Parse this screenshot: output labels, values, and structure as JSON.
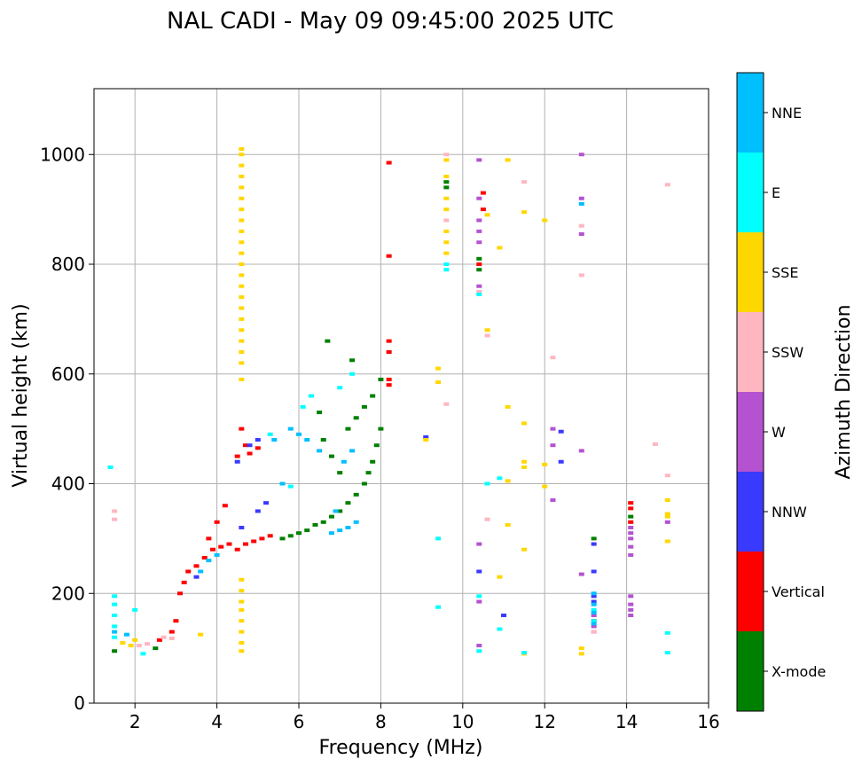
{
  "chart_data": {
    "type": "scatter",
    "title": "NAL CADI - May 09 09:45:00 2025 UTC",
    "xlabel": "Frequency (MHz)",
    "ylabel": "Virtual height (km)",
    "xlim": [
      1,
      16
    ],
    "ylim": [
      0,
      1120
    ],
    "xticks": [
      2,
      4,
      6,
      8,
      10,
      12,
      14,
      16
    ],
    "yticks": [
      0,
      200,
      400,
      600,
      800,
      1000
    ],
    "grid": true,
    "colorbar": {
      "title": "Azimuth Direction",
      "categories": [
        {
          "name": "X-mode",
          "color": "#008000"
        },
        {
          "name": "Vertical",
          "color": "#ff0000"
        },
        {
          "name": "NNW",
          "color": "#3a3aff"
        },
        {
          "name": "W",
          "color": "#b452d2"
        },
        {
          "name": "SSW",
          "color": "#ffb6c1"
        },
        {
          "name": "SSE",
          "color": "#ffd700"
        },
        {
          "name": "E",
          "color": "#00ffff"
        },
        {
          "name": "NNE",
          "color": "#00bfff"
        }
      ]
    },
    "series": [
      {
        "name": "X-mode",
        "points": [
          [
            1.5,
            95
          ],
          [
            2.5,
            100
          ],
          [
            5.6,
            300
          ],
          [
            5.8,
            305
          ],
          [
            6.0,
            310
          ],
          [
            6.2,
            315
          ],
          [
            6.4,
            325
          ],
          [
            6.6,
            330
          ],
          [
            6.8,
            340
          ],
          [
            7.0,
            350
          ],
          [
            7.2,
            365
          ],
          [
            7.4,
            380
          ],
          [
            7.6,
            400
          ],
          [
            7.7,
            420
          ],
          [
            7.8,
            440
          ],
          [
            7.9,
            470
          ],
          [
            8.0,
            500
          ],
          [
            7.0,
            420
          ],
          [
            6.8,
            450
          ],
          [
            6.6,
            480
          ],
          [
            7.2,
            500
          ],
          [
            7.4,
            520
          ],
          [
            7.6,
            540
          ],
          [
            7.8,
            560
          ],
          [
            8.0,
            590
          ],
          [
            6.5,
            530
          ],
          [
            6.7,
            660
          ],
          [
            7.3,
            625
          ],
          [
            10.4,
            810
          ],
          [
            13.2,
            300
          ],
          [
            14.1,
            340
          ],
          [
            9.6,
            950
          ],
          [
            9.6,
            940
          ],
          [
            10.4,
            790
          ]
        ]
      },
      {
        "name": "Vertical",
        "points": [
          [
            2.6,
            115
          ],
          [
            2.9,
            130
          ],
          [
            3.0,
            150
          ],
          [
            3.1,
            200
          ],
          [
            3.2,
            220
          ],
          [
            3.3,
            240
          ],
          [
            3.5,
            250
          ],
          [
            3.7,
            265
          ],
          [
            3.9,
            280
          ],
          [
            4.1,
            285
          ],
          [
            4.3,
            290
          ],
          [
            4.5,
            280
          ],
          [
            4.7,
            290
          ],
          [
            4.9,
            295
          ],
          [
            5.1,
            300
          ],
          [
            5.3,
            305
          ],
          [
            3.8,
            300
          ],
          [
            4.0,
            330
          ],
          [
            4.2,
            360
          ],
          [
            4.5,
            450
          ],
          [
            4.7,
            470
          ],
          [
            4.8,
            455
          ],
          [
            5.0,
            465
          ],
          [
            4.6,
            500
          ],
          [
            8.2,
            985
          ],
          [
            8.2,
            815
          ],
          [
            8.2,
            660
          ],
          [
            8.2,
            640
          ],
          [
            8.2,
            590
          ],
          [
            8.2,
            580
          ],
          [
            10.5,
            930
          ],
          [
            10.5,
            900
          ],
          [
            10.4,
            800
          ],
          [
            13.2,
            150
          ],
          [
            14.1,
            365
          ],
          [
            14.1,
            355
          ],
          [
            14.1,
            330
          ]
        ]
      },
      {
        "name": "NNW",
        "points": [
          [
            4.8,
            470
          ],
          [
            5.0,
            480
          ],
          [
            4.5,
            440
          ],
          [
            3.5,
            230
          ],
          [
            4.6,
            320
          ],
          [
            5.0,
            350
          ],
          [
            5.2,
            365
          ],
          [
            12.4,
            495
          ],
          [
            12.4,
            440
          ],
          [
            13.2,
            290
          ],
          [
            13.2,
            240
          ],
          [
            13.2,
            195
          ],
          [
            13.2,
            185
          ],
          [
            11.0,
            160
          ],
          [
            10.4,
            240
          ],
          [
            9.1,
            485
          ]
        ]
      },
      {
        "name": "W",
        "points": [
          [
            12.9,
            1000
          ],
          [
            12.9,
            920
          ],
          [
            12.9,
            855
          ],
          [
            12.9,
            460
          ],
          [
            12.2,
            500
          ],
          [
            12.2,
            470
          ],
          [
            12.2,
            370
          ],
          [
            10.4,
            990
          ],
          [
            10.4,
            920
          ],
          [
            10.4,
            880
          ],
          [
            10.4,
            860
          ],
          [
            10.4,
            840
          ],
          [
            10.4,
            760
          ],
          [
            10.4,
            290
          ],
          [
            10.4,
            185
          ],
          [
            10.4,
            105
          ],
          [
            13.2,
            140
          ],
          [
            13.2,
            130
          ],
          [
            13.2,
            160
          ],
          [
            12.9,
            235
          ],
          [
            14.1,
            195
          ],
          [
            14.1,
            180
          ],
          [
            14.1,
            170
          ],
          [
            14.1,
            160
          ],
          [
            14.1,
            320
          ],
          [
            14.1,
            310
          ],
          [
            14.1,
            300
          ],
          [
            14.1,
            285
          ],
          [
            14.1,
            270
          ],
          [
            15.0,
            330
          ]
        ]
      },
      {
        "name": "SSW",
        "points": [
          [
            1.5,
            350
          ],
          [
            1.5,
            335
          ],
          [
            2.1,
            105
          ],
          [
            2.3,
            108
          ],
          [
            2.7,
            120
          ],
          [
            2.9,
            118
          ],
          [
            9.6,
            1000
          ],
          [
            9.6,
            880
          ],
          [
            9.6,
            545
          ],
          [
            10.4,
            750
          ],
          [
            10.6,
            335
          ],
          [
            10.6,
            670
          ],
          [
            11.5,
            950
          ],
          [
            15.0,
            945
          ],
          [
            15.0,
            415
          ],
          [
            14.7,
            472
          ],
          [
            12.9,
            870
          ],
          [
            12.9,
            780
          ],
          [
            13.2,
            130
          ],
          [
            12.2,
            630
          ]
        ]
      },
      {
        "name": "SSE",
        "points": [
          [
            4.6,
            1010
          ],
          [
            4.6,
            1000
          ],
          [
            4.6,
            980
          ],
          [
            4.6,
            960
          ],
          [
            4.6,
            940
          ],
          [
            4.6,
            920
          ],
          [
            4.6,
            900
          ],
          [
            4.6,
            880
          ],
          [
            4.6,
            860
          ],
          [
            4.6,
            840
          ],
          [
            4.6,
            820
          ],
          [
            4.6,
            800
          ],
          [
            4.6,
            780
          ],
          [
            4.6,
            760
          ],
          [
            4.6,
            740
          ],
          [
            4.6,
            720
          ],
          [
            4.6,
            700
          ],
          [
            4.6,
            680
          ],
          [
            4.6,
            660
          ],
          [
            4.6,
            640
          ],
          [
            4.6,
            620
          ],
          [
            4.6,
            590
          ],
          [
            4.6,
            225
          ],
          [
            4.6,
            205
          ],
          [
            4.6,
            185
          ],
          [
            4.6,
            170
          ],
          [
            4.6,
            150
          ],
          [
            4.6,
            130
          ],
          [
            4.6,
            110
          ],
          [
            4.6,
            95
          ],
          [
            1.7,
            110
          ],
          [
            1.9,
            105
          ],
          [
            2.0,
            115
          ],
          [
            3.6,
            125
          ],
          [
            9.6,
            990
          ],
          [
            9.6,
            960
          ],
          [
            9.6,
            920
          ],
          [
            9.6,
            900
          ],
          [
            9.6,
            860
          ],
          [
            9.6,
            840
          ],
          [
            9.6,
            820
          ],
          [
            9.4,
            610
          ],
          [
            9.4,
            585
          ],
          [
            9.1,
            480
          ],
          [
            10.6,
            890
          ],
          [
            10.6,
            680
          ],
          [
            10.9,
            830
          ],
          [
            11.1,
            990
          ],
          [
            11.5,
            895
          ],
          [
            11.1,
            540
          ],
          [
            11.5,
            510
          ],
          [
            11.5,
            440
          ],
          [
            11.5,
            430
          ],
          [
            11.1,
            405
          ],
          [
            11.1,
            325
          ],
          [
            10.9,
            230
          ],
          [
            11.5,
            90
          ],
          [
            12.0,
            880
          ],
          [
            12.0,
            435
          ],
          [
            12.0,
            395
          ],
          [
            12.9,
            100
          ],
          [
            12.9,
            90
          ],
          [
            15.0,
            370
          ],
          [
            15.0,
            345
          ],
          [
            15.0,
            340
          ],
          [
            15.0,
            295
          ],
          [
            11.5,
            280
          ]
        ]
      },
      {
        "name": "E",
        "points": [
          [
            1.4,
            430
          ],
          [
            1.5,
            195
          ],
          [
            1.5,
            180
          ],
          [
            1.5,
            160
          ],
          [
            1.5,
            140
          ],
          [
            1.5,
            120
          ],
          [
            2.0,
            170
          ],
          [
            2.2,
            90
          ],
          [
            5.3,
            490
          ],
          [
            5.8,
            395
          ],
          [
            6.1,
            540
          ],
          [
            6.3,
            560
          ],
          [
            7.0,
            575
          ],
          [
            7.3,
            600
          ],
          [
            9.6,
            800
          ],
          [
            9.6,
            790
          ],
          [
            9.4,
            300
          ],
          [
            9.4,
            175
          ],
          [
            10.4,
            745
          ],
          [
            10.4,
            195
          ],
          [
            10.6,
            400
          ],
          [
            10.9,
            410
          ],
          [
            10.9,
            135
          ],
          [
            11.5,
            92
          ],
          [
            15.0,
            92
          ],
          [
            15.0,
            128
          ],
          [
            10.4,
            95
          ],
          [
            13.2,
            170
          ],
          [
            13.2,
            150
          ]
        ]
      },
      {
        "name": "NNE",
        "points": [
          [
            1.5,
            130
          ],
          [
            1.8,
            125
          ],
          [
            3.6,
            240
          ],
          [
            3.8,
            260
          ],
          [
            4.0,
            270
          ],
          [
            5.6,
            400
          ],
          [
            5.8,
            500
          ],
          [
            6.0,
            490
          ],
          [
            6.2,
            480
          ],
          [
            6.5,
            460
          ],
          [
            6.8,
            310
          ],
          [
            7.0,
            315
          ],
          [
            7.2,
            320
          ],
          [
            7.4,
            330
          ],
          [
            6.9,
            350
          ],
          [
            7.1,
            440
          ],
          [
            7.3,
            460
          ],
          [
            5.4,
            480
          ],
          [
            13.2,
            200
          ],
          [
            13.2,
            180
          ],
          [
            13.2,
            165
          ],
          [
            13.2,
            145
          ],
          [
            12.9,
            910
          ]
        ]
      }
    ]
  }
}
